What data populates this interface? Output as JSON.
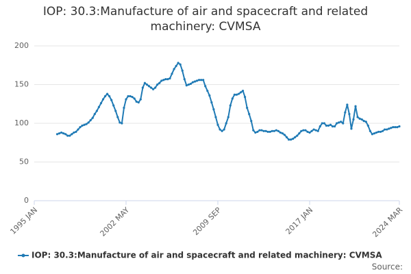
{
  "chart_data": {
    "type": "line",
    "title": "IOP: 30.3:Manufacture of air and spacecraft and related machinery: CVMSA",
    "categories": [
      "1995 JAN",
      null,
      null,
      null,
      null,
      null,
      null,
      null,
      null,
      null,
      null,
      null,
      null,
      null,
      null,
      null,
      null,
      null,
      null,
      null,
      null,
      null,
      null,
      null,
      null,
      null,
      null,
      null,
      null,
      null,
      null,
      null,
      null,
      null,
      null,
      null,
      null,
      null,
      null,
      null,
      null,
      null,
      null,
      null,
      "2002 MAY",
      null,
      null,
      null,
      null,
      null,
      null,
      null,
      null,
      null,
      null,
      null,
      null,
      null,
      null,
      null,
      null,
      null,
      null,
      null,
      null,
      null,
      null,
      null,
      null,
      null,
      null,
      null,
      null,
      null,
      null,
      null,
      null,
      null,
      null,
      null,
      null,
      null,
      null,
      null,
      null,
      null,
      null,
      null,
      "2009 SEP",
      null,
      null,
      null,
      null,
      null,
      null,
      null,
      null,
      null,
      null,
      null,
      null,
      null,
      null,
      null,
      null,
      null,
      null,
      null,
      null,
      null,
      null,
      null,
      null,
      null,
      null,
      null,
      null,
      null,
      null,
      null,
      null,
      null,
      null,
      null,
      null,
      null,
      null,
      null,
      null,
      null,
      null,
      null,
      "2017 JAN",
      null,
      null,
      null,
      null,
      null,
      null,
      null,
      null,
      null,
      null,
      null,
      null,
      null,
      null,
      null,
      null,
      null,
      null,
      null,
      null,
      null,
      null,
      null,
      null,
      null,
      null,
      null,
      null,
      null,
      null,
      null,
      null,
      null,
      null,
      null,
      null,
      null,
      null,
      null,
      null,
      null,
      null,
      "2024 MAR"
    ],
    "series": [
      {
        "name": "IOP: 30.3:Manufacture of air and spacecraft and related machinery: CVMSA",
        "color": "#1f7ab5",
        "values": [
          null,
          null,
          null,
          null,
          null,
          null,
          null,
          null,
          null,
          null,
          null,
          86,
          87,
          88,
          87,
          86,
          84,
          84,
          86,
          88,
          89,
          92,
          95,
          97,
          98,
          99,
          101,
          104,
          107,
          112,
          116,
          121,
          126,
          131,
          135,
          138,
          135,
          130,
          123,
          116,
          108,
          101,
          100,
          120,
          131,
          135,
          135,
          134,
          132,
          128,
          127,
          131,
          146,
          152,
          150,
          148,
          146,
          144,
          146,
          150,
          152,
          155,
          156,
          157,
          157,
          158,
          164,
          170,
          174,
          178,
          176,
          168,
          157,
          149,
          150,
          151,
          153,
          154,
          155,
          156,
          156,
          156,
          148,
          142,
          136,
          127,
          118,
          108,
          98,
          92,
          90,
          92,
          100,
          108,
          123,
          132,
          137,
          137,
          138,
          140,
          142,
          134,
          120,
          112,
          103,
          91,
          88,
          89,
          91,
          91,
          90,
          90,
          89,
          89,
          90,
          90,
          91,
          90,
          88,
          87,
          85,
          82,
          79,
          79,
          80,
          82,
          84,
          87,
          90,
          91,
          91,
          89,
          88,
          90,
          92,
          91,
          90,
          96,
          100,
          100,
          97,
          97,
          98,
          96,
          96,
          100,
          101,
          102,
          100,
          114,
          124,
          112,
          93,
          105,
          122,
          108,
          106,
          105,
          103,
          102,
          97,
          90,
          86,
          87,
          88,
          89,
          89,
          90,
          92,
          92,
          93,
          94,
          95,
          95,
          95,
          96
        ]
      }
    ],
    "ylim": [
      0,
      200
    ],
    "yticks": [
      0,
      50,
      100,
      150,
      200
    ],
    "grid": true,
    "source": "Source:"
  }
}
